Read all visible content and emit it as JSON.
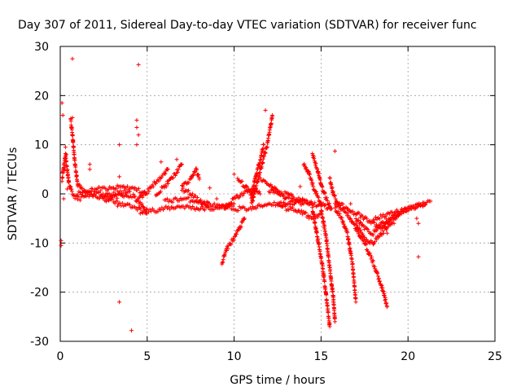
{
  "chart_data": {
    "type": "scatter",
    "title": "Day 307 of 2011, Sidereal Day-to-day VTEC variation (SDTVAR) for receiver func",
    "xlabel": "GPS time / hours",
    "ylabel": "SDTVAR / TECUs",
    "xlim": [
      0,
      25
    ],
    "ylim": [
      -30,
      30
    ],
    "xticks": [
      "0",
      "5",
      "10",
      "15",
      "20",
      "25"
    ],
    "yticks": [
      "-30",
      "-20",
      "-10",
      "0",
      "10",
      "20",
      "30"
    ],
    "xtick_values": [
      0,
      5,
      10,
      15,
      20,
      25
    ],
    "ytick_values": [
      -30,
      -20,
      -10,
      0,
      10,
      20,
      30
    ],
    "grid": true,
    "marker": "plus",
    "color": "#ff0000",
    "series": [
      {
        "tracks": [
          [
            [
              0.1,
              3
            ],
            [
              0.3,
              8
            ],
            [
              0.5,
              2
            ],
            [
              0.7,
              0
            ],
            [
              1.0,
              -1
            ],
            [
              1.5,
              -0.5
            ],
            [
              2.5,
              -0.5
            ],
            [
              3.5,
              -0.5
            ],
            [
              4.2,
              -0.5
            ],
            [
              4.6,
              -2
            ],
            [
              5.0,
              -3.5
            ],
            [
              6.0,
              -3
            ],
            [
              7.0,
              -2.5
            ],
            [
              8.0,
              -3
            ],
            [
              9.0,
              -3
            ],
            [
              10.0,
              -2
            ]
          ],
          [
            [
              0.6,
              15
            ],
            [
              0.7,
              12
            ],
            [
              0.85,
              6
            ],
            [
              1.0,
              2
            ],
            [
              1.3,
              0.5
            ],
            [
              2.0,
              0
            ],
            [
              3.0,
              0
            ],
            [
              4.0,
              0.5
            ]
          ],
          [
            [
              1.0,
              0
            ],
            [
              2.0,
              1
            ],
            [
              3.0,
              1
            ],
            [
              3.5,
              1.5
            ],
            [
              4.3,
              1
            ],
            [
              5.0,
              0
            ]
          ],
          [
            [
              4.5,
              -1
            ],
            [
              5.0,
              0.5
            ],
            [
              5.5,
              2.5
            ],
            [
              6.0,
              4
            ],
            [
              6.2,
              5
            ]
          ],
          [
            [
              5.5,
              0
            ],
            [
              6.0,
              1.5
            ],
            [
              6.5,
              3.5
            ],
            [
              6.8,
              5
            ],
            [
              7.0,
              6
            ]
          ],
          [
            [
              7.0,
              1
            ],
            [
              7.5,
              0
            ],
            [
              8.0,
              -1.5
            ],
            [
              8.5,
              -2.5
            ]
          ],
          [
            [
              6.0,
              -1.5
            ],
            [
              7.0,
              -1
            ],
            [
              8.0,
              -1.5
            ],
            [
              9.0,
              -2.5
            ],
            [
              10.0,
              -3
            ],
            [
              11.0,
              -3
            ],
            [
              12.0,
              -2
            ],
            [
              13.0,
              -2
            ],
            [
              14.0,
              -1.5
            ],
            [
              15.0,
              -2.5
            ]
          ],
          [
            [
              7.0,
              1.5
            ],
            [
              7.5,
              3
            ],
            [
              7.8,
              5
            ],
            [
              8.0,
              3
            ]
          ],
          [
            [
              9.3,
              -14
            ],
            [
              9.6,
              -11
            ],
            [
              10.0,
              -9
            ],
            [
              10.3,
              -7
            ],
            [
              10.6,
              -5
            ]
          ],
          [
            [
              9.5,
              -3
            ],
            [
              10.0,
              -1
            ],
            [
              10.5,
              0
            ],
            [
              11.0,
              1
            ],
            [
              11.5,
              0
            ]
          ],
          [
            [
              10.2,
              3
            ],
            [
              10.5,
              2
            ],
            [
              11.0,
              0
            ]
          ],
          [
            [
              11.0,
              -2
            ],
            [
              11.3,
              2
            ],
            [
              11.6,
              6
            ],
            [
              11.9,
              10
            ],
            [
              12.1,
              14
            ],
            [
              12.2,
              16
            ]
          ],
          [
            [
              11.0,
              -1
            ],
            [
              11.2,
              3
            ],
            [
              11.5,
              7
            ],
            [
              11.7,
              10
            ]
          ],
          [
            [
              11.5,
              3
            ],
            [
              12.0,
              2
            ],
            [
              12.5,
              0.5
            ],
            [
              13.0,
              -1
            ],
            [
              13.5,
              -1.5
            ],
            [
              14.0,
              -2
            ]
          ],
          [
            [
              12.0,
              0.5
            ],
            [
              13.0,
              0
            ],
            [
              13.5,
              -1
            ],
            [
              14.0,
              -1.5
            ],
            [
              14.5,
              -2
            ]
          ],
          [
            [
              14.0,
              6
            ],
            [
              14.3,
              4
            ],
            [
              14.6,
              1
            ],
            [
              15.0,
              -2
            ],
            [
              15.5,
              -3
            ]
          ],
          [
            [
              14.5,
              8
            ],
            [
              14.8,
              5
            ],
            [
              15.0,
              2
            ],
            [
              15.3,
              -1
            ],
            [
              15.6,
              -3
            ]
          ],
          [
            [
              14.5,
              -3
            ],
            [
              14.8,
              -9
            ],
            [
              15.1,
              -15
            ],
            [
              15.3,
              -21
            ],
            [
              15.5,
              -27
            ]
          ],
          [
            [
              15.0,
              -3
            ],
            [
              15.3,
              -9
            ],
            [
              15.5,
              -15
            ],
            [
              15.7,
              -21
            ],
            [
              15.8,
              -26
            ]
          ],
          [
            [
              15.5,
              3
            ],
            [
              15.7,
              0
            ],
            [
              16.0,
              -2
            ],
            [
              16.5,
              -3
            ]
          ],
          [
            [
              15.8,
              -3
            ],
            [
              16.2,
              -5
            ],
            [
              16.5,
              -8
            ],
            [
              16.8,
              -14
            ],
            [
              17.0,
              -22
            ]
          ],
          [
            [
              15.8,
              -2
            ],
            [
              16.5,
              -4
            ],
            [
              17.0,
              -7
            ],
            [
              17.5,
              -10
            ],
            [
              18.0,
              -14
            ],
            [
              18.5,
              -19
            ],
            [
              18.8,
              -23
            ]
          ],
          [
            [
              16.5,
              -3
            ],
            [
              17.0,
              -4
            ],
            [
              17.5,
              -5
            ],
            [
              18.0,
              -6
            ],
            [
              18.5,
              -7
            ],
            [
              19.0,
              -5
            ]
          ],
          [
            [
              17.0,
              -5
            ],
            [
              17.5,
              -7
            ],
            [
              18.0,
              -8
            ],
            [
              18.5,
              -6
            ],
            [
              19.0,
              -5
            ],
            [
              19.5,
              -4
            ]
          ],
          [
            [
              17.0,
              -6
            ],
            [
              17.5,
              -9
            ],
            [
              18.0,
              -10
            ],
            [
              18.5,
              -8
            ],
            [
              19.0,
              -6
            ],
            [
              19.5,
              -4
            ],
            [
              20.0,
              -3
            ],
            [
              20.5,
              -2.5
            ],
            [
              21.0,
              -2
            ],
            [
              21.3,
              -1.5
            ]
          ],
          [
            [
              18.0,
              -5
            ],
            [
              19.0,
              -4
            ],
            [
              20.0,
              -3
            ],
            [
              21.0,
              -2
            ]
          ],
          [
            [
              2.5,
              -1
            ],
            [
              3.5,
              -2
            ],
            [
              4.5,
              -3
            ],
            [
              5.0,
              -4
            ]
          ],
          [
            [
              12.5,
              -2
            ],
            [
              13.0,
              -3
            ],
            [
              13.5,
              -3
            ],
            [
              14.0,
              -4
            ],
            [
              14.5,
              -5
            ],
            [
              15.0,
              -4
            ]
          ]
        ],
        "outliers": [
          [
            0.7,
            27.5
          ],
          [
            4.5,
            26.3
          ],
          [
            0.1,
            18.5
          ],
          [
            0.15,
            16
          ],
          [
            0.7,
            15.5
          ],
          [
            4.4,
            15
          ],
          [
            4.4,
            13.5
          ],
          [
            4.5,
            12
          ],
          [
            3.4,
            10
          ],
          [
            4.4,
            10
          ],
          [
            0.3,
            9.5
          ],
          [
            0.35,
            8
          ],
          [
            1.7,
            6
          ],
          [
            1.7,
            5
          ],
          [
            3.4,
            3.5
          ],
          [
            0.05,
            -9.5
          ],
          [
            0.05,
            -10.5
          ],
          [
            3.4,
            -22
          ],
          [
            4.1,
            -27.8
          ],
          [
            20.6,
            -12.8
          ],
          [
            11.8,
            17
          ],
          [
            15.8,
            8.7
          ],
          [
            8.6,
            1.2
          ],
          [
            10.0,
            4
          ],
          [
            20.5,
            -5
          ],
          [
            20.6,
            -6
          ],
          [
            14.3,
            4.5
          ],
          [
            3.3,
            -2.5
          ],
          [
            4.6,
            -4
          ],
          [
            9.0,
            -1
          ],
          [
            12.2,
            1
          ],
          [
            13.8,
            1.5
          ],
          [
            16.7,
            -2
          ],
          [
            18.8,
            -8
          ],
          [
            19.2,
            -6
          ],
          [
            0.4,
            1
          ],
          [
            0.2,
            -1
          ],
          [
            0.25,
            5
          ],
          [
            5.8,
            6.5
          ],
          [
            6.7,
            7
          ]
        ]
      }
    ]
  }
}
